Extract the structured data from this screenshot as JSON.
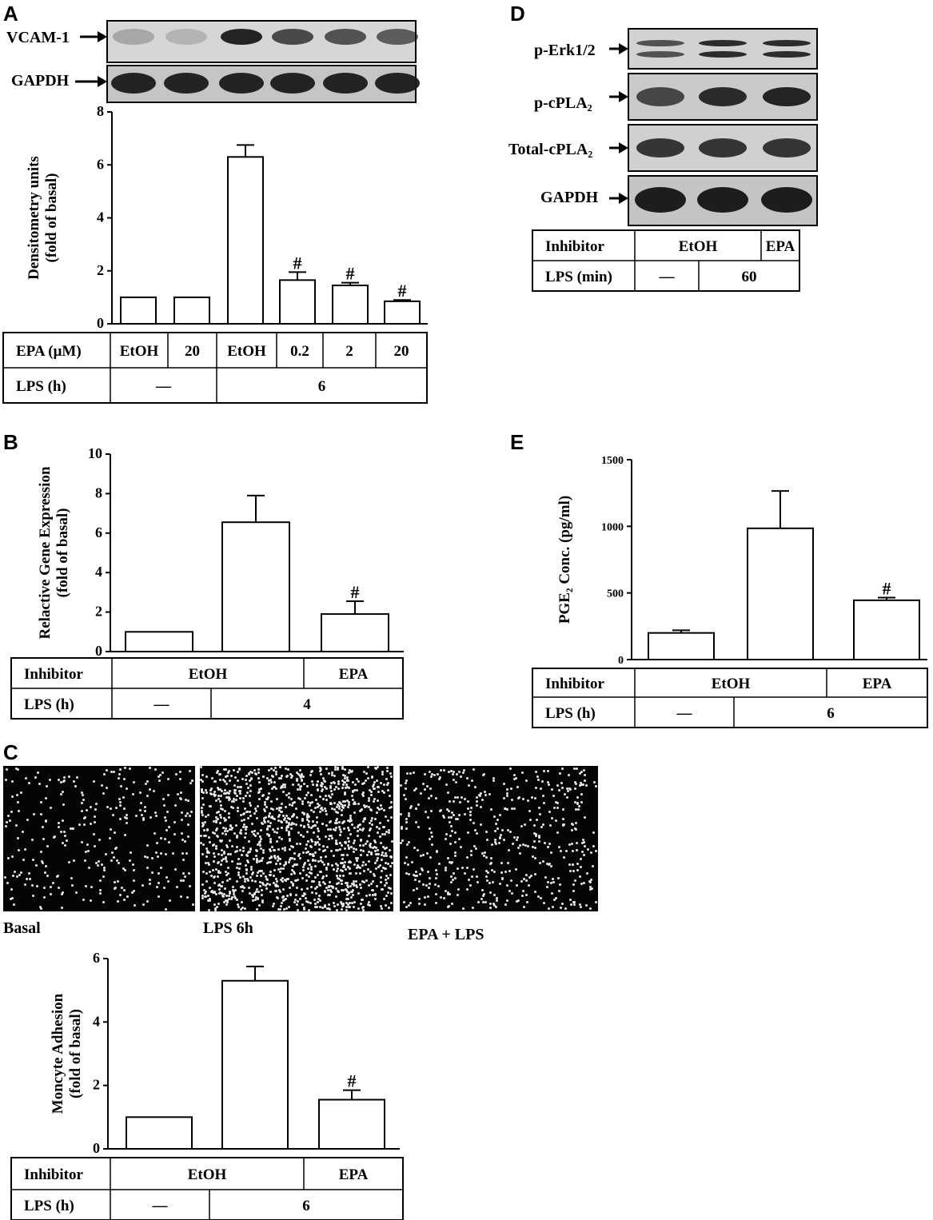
{
  "panels": {
    "A": {
      "letter": "A",
      "blot_labels": [
        "VCAM-1",
        "GAPDH"
      ],
      "chart_data": {
        "type": "bar",
        "categories": [
          "EtOH",
          "20",
          "EtOH",
          "0.2",
          "2",
          "20"
        ],
        "values": [
          1.0,
          1.0,
          6.3,
          1.65,
          1.45,
          0.85
        ],
        "errors": [
          0,
          0,
          0.45,
          0.3,
          0.1,
          0.05
        ],
        "significance": [
          "",
          "",
          "",
          "#",
          "#",
          "#"
        ],
        "ylabel": "Densitometry units",
        "ylabel2": "(fold of basal)",
        "ylim": [
          0,
          8
        ],
        "yticks": [
          0,
          2,
          4,
          6,
          8
        ]
      },
      "table": {
        "row1_label": "EPA (μM)",
        "row1_cells": [
          "EtOH",
          "20",
          "EtOH",
          "0.2",
          "2",
          "20"
        ],
        "row2_label": "LPS (h)",
        "row2_cells": [
          "—",
          "6"
        ]
      }
    },
    "B": {
      "letter": "B",
      "chart_data": {
        "type": "bar",
        "categories": [
          "EtOH / —",
          "EtOH / 4",
          "EPA / 4"
        ],
        "values": [
          1.0,
          6.55,
          1.9
        ],
        "errors": [
          0,
          1.35,
          0.65
        ],
        "significance": [
          "",
          "",
          "#"
        ],
        "ylabel": "Relactive Gene Expression",
        "ylabel2": "(fold of basal)",
        "ylim": [
          0,
          10
        ],
        "yticks": [
          0,
          2,
          4,
          6,
          8,
          10
        ]
      },
      "table": {
        "row1_label": "Inhibitor",
        "row1_cells": [
          "EtOH",
          "EPA"
        ],
        "row2_label": "LPS (h)",
        "row2_cells": [
          "—",
          "4"
        ]
      }
    },
    "C": {
      "letter": "C",
      "image_captions": [
        "Basal",
        "LPS 6h",
        "EPA + LPS"
      ],
      "chart_data": {
        "type": "bar",
        "categories": [
          "EtOH / —",
          "EtOH / 6",
          "EPA / 6"
        ],
        "values": [
          1.0,
          5.3,
          1.55
        ],
        "errors": [
          0,
          0.45,
          0.3
        ],
        "significance": [
          "",
          "",
          "#"
        ],
        "ylabel": "Moncyte Adhesion",
        "ylabel2": "(fold of basal)",
        "ylim": [
          0,
          6
        ],
        "yticks": [
          0,
          2,
          4,
          6
        ]
      },
      "table": {
        "row1_label": "Inhibitor",
        "row1_cells": [
          "EtOH",
          "EPA"
        ],
        "row2_label": "LPS (h)",
        "row2_cells": [
          "—",
          "6"
        ]
      }
    },
    "D": {
      "letter": "D",
      "blot_labels": [
        "p-Erk1/2",
        "p-cPLA₂",
        "Total-cPLA₂",
        "GAPDH"
      ],
      "table": {
        "row1_label": "Inhibitor",
        "row1_cells": [
          "EtOH",
          "EPA"
        ],
        "row2_label": "LPS (min)",
        "row2_cells": [
          "—",
          "60"
        ]
      }
    },
    "E": {
      "letter": "E",
      "chart_data": {
        "type": "bar",
        "categories": [
          "EtOH / —",
          "EtOH / 6",
          "EPA / 6"
        ],
        "values": [
          200,
          985,
          445
        ],
        "errors": [
          20,
          280,
          20
        ],
        "significance": [
          "",
          "",
          "#"
        ],
        "ylabel": "PGE₂ Conc. (pg/ml)",
        "ylim": [
          0,
          1500
        ],
        "yticks": [
          0,
          500,
          1000,
          1500
        ]
      },
      "table": {
        "row1_label": "Inhibitor",
        "row1_cells": [
          "EtOH",
          "EPA"
        ],
        "row2_label": "LPS (h)",
        "row2_cells": [
          "—",
          "6"
        ]
      }
    }
  },
  "colors": {
    "ink": "#000000",
    "bar_fill": "#ffffff",
    "blot_bg": "#c9c9c9",
    "band": "#1a1a1a"
  }
}
